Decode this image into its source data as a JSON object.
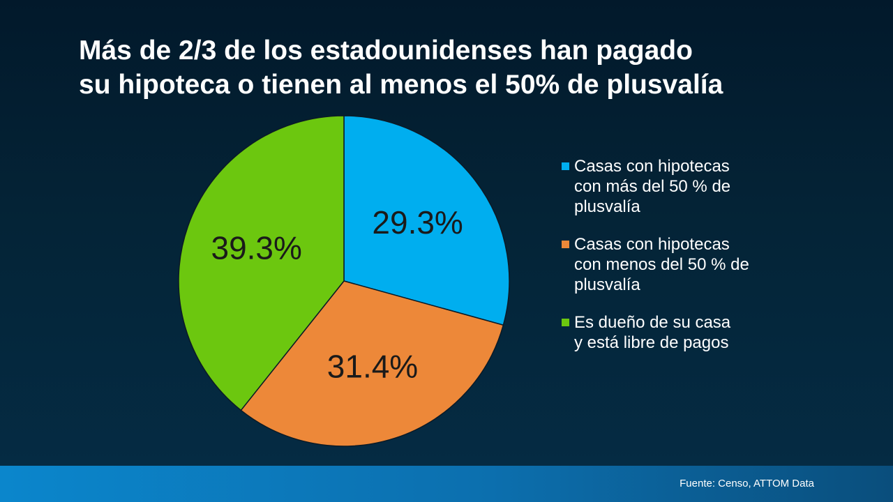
{
  "title": {
    "line1": "Más de 2/3 de los estadounidenses han pagado",
    "line2": "su hipoteca o tienen al menos el 50% de plusvalía"
  },
  "chart_data": {
    "type": "pie",
    "title": "Más de 2/3 de los estadounidenses han pagado su hipoteca o tienen al menos el 50% de plusvalía",
    "legend_position": "right",
    "slices": [
      {
        "legend": "Casas con hipotecas\ncon más del 50 % de\nplusvalía",
        "value": 29.3,
        "label": "29.3%",
        "color": "#00aeef"
      },
      {
        "legend": "Casas con hipotecas\ncon menos del 50 % de\nplusvalía",
        "value": 31.4,
        "label": "31.4%",
        "color": "#ed8839"
      },
      {
        "legend": "Es dueño de su casa\ny está libre de pagos",
        "value": 39.3,
        "label": "39.3%",
        "color": "#6cc70f"
      }
    ]
  },
  "footer": {
    "source": "Fuente: Censo, ATTOM Data"
  }
}
